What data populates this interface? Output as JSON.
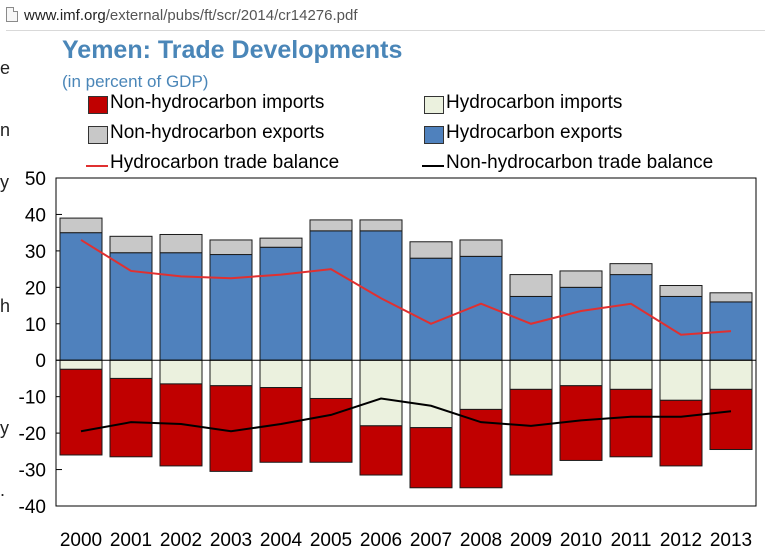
{
  "browser": {
    "url_host": "www.imf.org",
    "url_path": "/external/pubs/ft/scr/2014/cr14276.pdf"
  },
  "chart_data": {
    "type": "bar",
    "title": "Yemen: Trade Developments",
    "subtitle": "(in percent of GDP)",
    "categories": [
      "2000",
      "2001",
      "2002",
      "2003",
      "2004",
      "2005",
      "2006",
      "2007",
      "2008",
      "2009",
      "2010",
      "2011",
      "2012",
      "2013"
    ],
    "ylim": [
      -40,
      50
    ],
    "yticks": [
      50,
      40,
      30,
      20,
      10,
      0,
      -10,
      -20,
      -30,
      -40
    ],
    "grid": false,
    "legend_position": "top",
    "bars_positive": [
      {
        "name": "Hydrocarbon exports",
        "color": "#4f81bd",
        "values": [
          35,
          29.5,
          29.5,
          29,
          31,
          35.5,
          35.5,
          28,
          28.5,
          17.5,
          20,
          23.5,
          17.5,
          16
        ]
      },
      {
        "name": "Non-hydrocarbon exports",
        "color": "#c8c8c8",
        "values": [
          4,
          4.5,
          5,
          4,
          2.5,
          3,
          3,
          4.5,
          4.5,
          6,
          4.5,
          3,
          3,
          2.5
        ]
      }
    ],
    "bars_negative": [
      {
        "name": "Hydrocarbon imports",
        "color": "#ebf1de",
        "values": [
          -2.5,
          -5,
          -6.5,
          -7,
          -7.5,
          -10.5,
          -18,
          -18.5,
          -13.5,
          -8,
          -7,
          -8,
          -11,
          -8
        ]
      },
      {
        "name": "Non-hydrocarbon imports",
        "color": "#c00000",
        "values": [
          -23.5,
          -21.5,
          -22.5,
          -23.5,
          -20.5,
          -17.5,
          -13.5,
          -16.5,
          -21.5,
          -23.5,
          -20.5,
          -18.5,
          -18,
          -16.5
        ]
      }
    ],
    "lines": [
      {
        "name": "Hydrocarbon trade balance",
        "color": "#e03030",
        "values": [
          33,
          24.5,
          23,
          22.5,
          23.5,
          25,
          17,
          10,
          15.5,
          10,
          13.5,
          15.5,
          7,
          8
        ]
      },
      {
        "name": "Non-hydrocarbon trade balance",
        "color": "#000000",
        "values": [
          -19.5,
          -17,
          -17.5,
          -19.5,
          -17.5,
          -15,
          -10.5,
          -12.5,
          -17,
          -18,
          -16.5,
          -15.5,
          -15.5,
          -14
        ]
      }
    ]
  },
  "legend": [
    {
      "label": "Non-hydrocarbon imports",
      "kind": "box",
      "color": "#c00000"
    },
    {
      "label": "Hydrocarbon imports",
      "kind": "box",
      "color": "#ebf1de"
    },
    {
      "label": "Non-hydrocarbon exports",
      "kind": "box",
      "color": "#c8c8c8"
    },
    {
      "label": "Hydrocarbon exports",
      "kind": "box",
      "color": "#4f81bd"
    },
    {
      "label": "Hydrocarbon trade balance",
      "kind": "line",
      "color": "#e03030"
    },
    {
      "label": "Non-hydrocarbon trade balance",
      "kind": "line",
      "color": "#000000"
    }
  ],
  "left_fragments": [
    "e",
    "n",
    "y",
    "h",
    "y",
    "."
  ]
}
